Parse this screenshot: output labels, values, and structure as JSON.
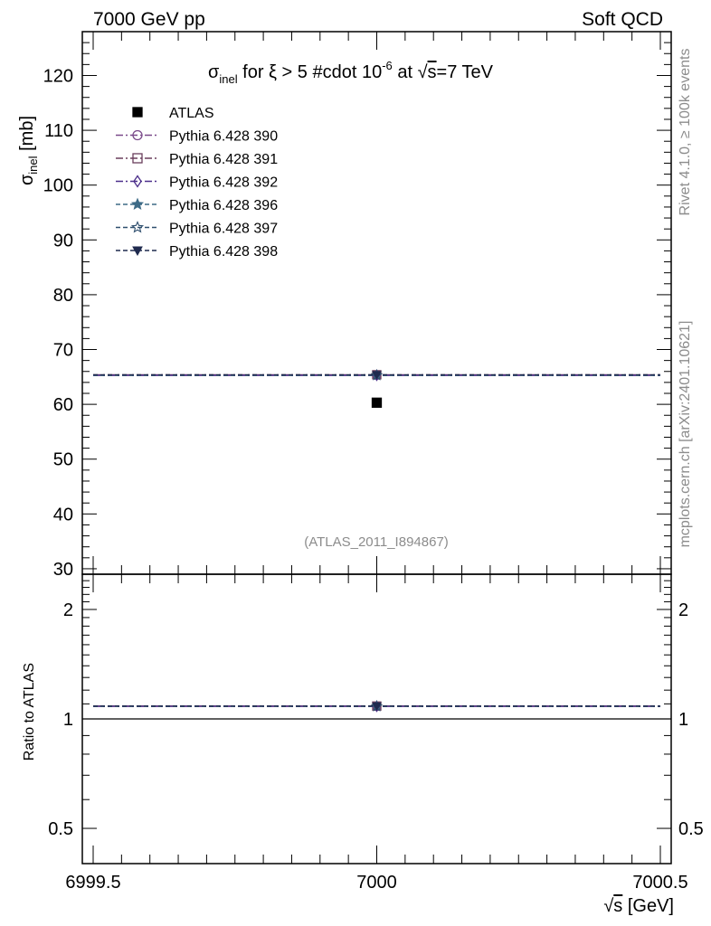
{
  "header": {
    "left": "7000 GeV pp",
    "right": "Soft QCD"
  },
  "side_labels": {
    "rivet": "Rivet 4.1.0, ≥ 100k events",
    "mcplots": "mcplots.cern.ch [arXiv:2401.10621]"
  },
  "analysis_id": "(ATLAS_2011_I894867)",
  "colors": {
    "data": "#000000",
    "pythia390": "#7a4a8a",
    "pythia391": "#6a3e5c",
    "pythia392": "#4b2e8a",
    "pythia396": "#3d6a86",
    "pythia397": "#2f4f6e",
    "pythia398": "#1f2a4e"
  },
  "chart_data": [
    {
      "panel": "main",
      "type": "scatter",
      "title": {
        "prefix": "σ",
        "prefix_sub": "inel",
        "middle": " for ξ > 5 #cdot 10",
        "middle_sup": "-6",
        "suffix_a": " at ",
        "sqrt": "√",
        "sqrt_arg": "s",
        "suffix_b": "=7 TeV"
      },
      "ylabel": {
        "main": "σ",
        "sub": "inel",
        "unit": " [mb]"
      },
      "ylim": [
        29,
        128
      ],
      "xlim": [
        6999.5,
        7000.5
      ],
      "yticks": [
        30,
        40,
        50,
        60,
        70,
        80,
        90,
        100,
        110,
        120
      ],
      "ytick_labels": [
        "30",
        "40",
        "50",
        "60",
        "70",
        "80",
        "90",
        "100",
        "110",
        "120"
      ],
      "legend": "top-left",
      "series": [
        {
          "name": "ATLAS",
          "key": "data",
          "x": [
            7000
          ],
          "y": [
            60.3
          ],
          "marker": "filled-square",
          "line": "none"
        },
        {
          "name": "Pythia 6.428 390",
          "key": "pythia390",
          "x": [
            7000
          ],
          "y": [
            65.3
          ],
          "marker": "open-circle",
          "line": "dash-dot"
        },
        {
          "name": "Pythia 6.428 391",
          "key": "pythia391",
          "x": [
            7000
          ],
          "y": [
            65.4
          ],
          "marker": "open-square",
          "line": "dash-dot"
        },
        {
          "name": "Pythia 6.428 392",
          "key": "pythia392",
          "x": [
            7000
          ],
          "y": [
            65.3
          ],
          "marker": "open-diamond",
          "line": "dash-dot"
        },
        {
          "name": "Pythia 6.428 396",
          "key": "pythia396",
          "x": [
            7000
          ],
          "y": [
            65.3
          ],
          "marker": "filled-star",
          "line": "dashed"
        },
        {
          "name": "Pythia 6.428 397",
          "key": "pythia397",
          "x": [
            7000
          ],
          "y": [
            65.3
          ],
          "marker": "open-star",
          "line": "dashed"
        },
        {
          "name": "Pythia 6.428 398",
          "key": "pythia398",
          "x": [
            7000
          ],
          "y": [
            65.4
          ],
          "marker": "filled-triangle-down",
          "line": "dashed"
        }
      ]
    },
    {
      "panel": "ratio",
      "type": "line",
      "ylabel": "Ratio to ATLAS",
      "xlabel": {
        "sqrt": "√",
        "arg": "s",
        "unit": " [GeV]"
      },
      "yscale": "log",
      "ylim": [
        0.4,
        2.5
      ],
      "xlim": [
        6999.5,
        7000.5
      ],
      "yticks": [
        0.5,
        1,
        2
      ],
      "ytick_labels": [
        "0.5",
        "1",
        "2"
      ],
      "xticks": [
        6999.5,
        7000,
        7000.5
      ],
      "xtick_labels": [
        "6999.5",
        "7000",
        "7000.5"
      ],
      "reference": 1,
      "series": [
        {
          "name": "Pythia 6.428 390",
          "key": "pythia390",
          "x": [
            7000
          ],
          "y": [
            1.083
          ]
        },
        {
          "name": "Pythia 6.428 391",
          "key": "pythia391",
          "x": [
            7000
          ],
          "y": [
            1.085
          ]
        },
        {
          "name": "Pythia 6.428 392",
          "key": "pythia392",
          "x": [
            7000
          ],
          "y": [
            1.083
          ]
        },
        {
          "name": "Pythia 6.428 396",
          "key": "pythia396",
          "x": [
            7000
          ],
          "y": [
            1.083
          ]
        },
        {
          "name": "Pythia 6.428 397",
          "key": "pythia397",
          "x": [
            7000
          ],
          "y": [
            1.083
          ]
        },
        {
          "name": "Pythia 6.428 398",
          "key": "pythia398",
          "x": [
            7000
          ],
          "y": [
            1.085
          ]
        }
      ]
    }
  ]
}
